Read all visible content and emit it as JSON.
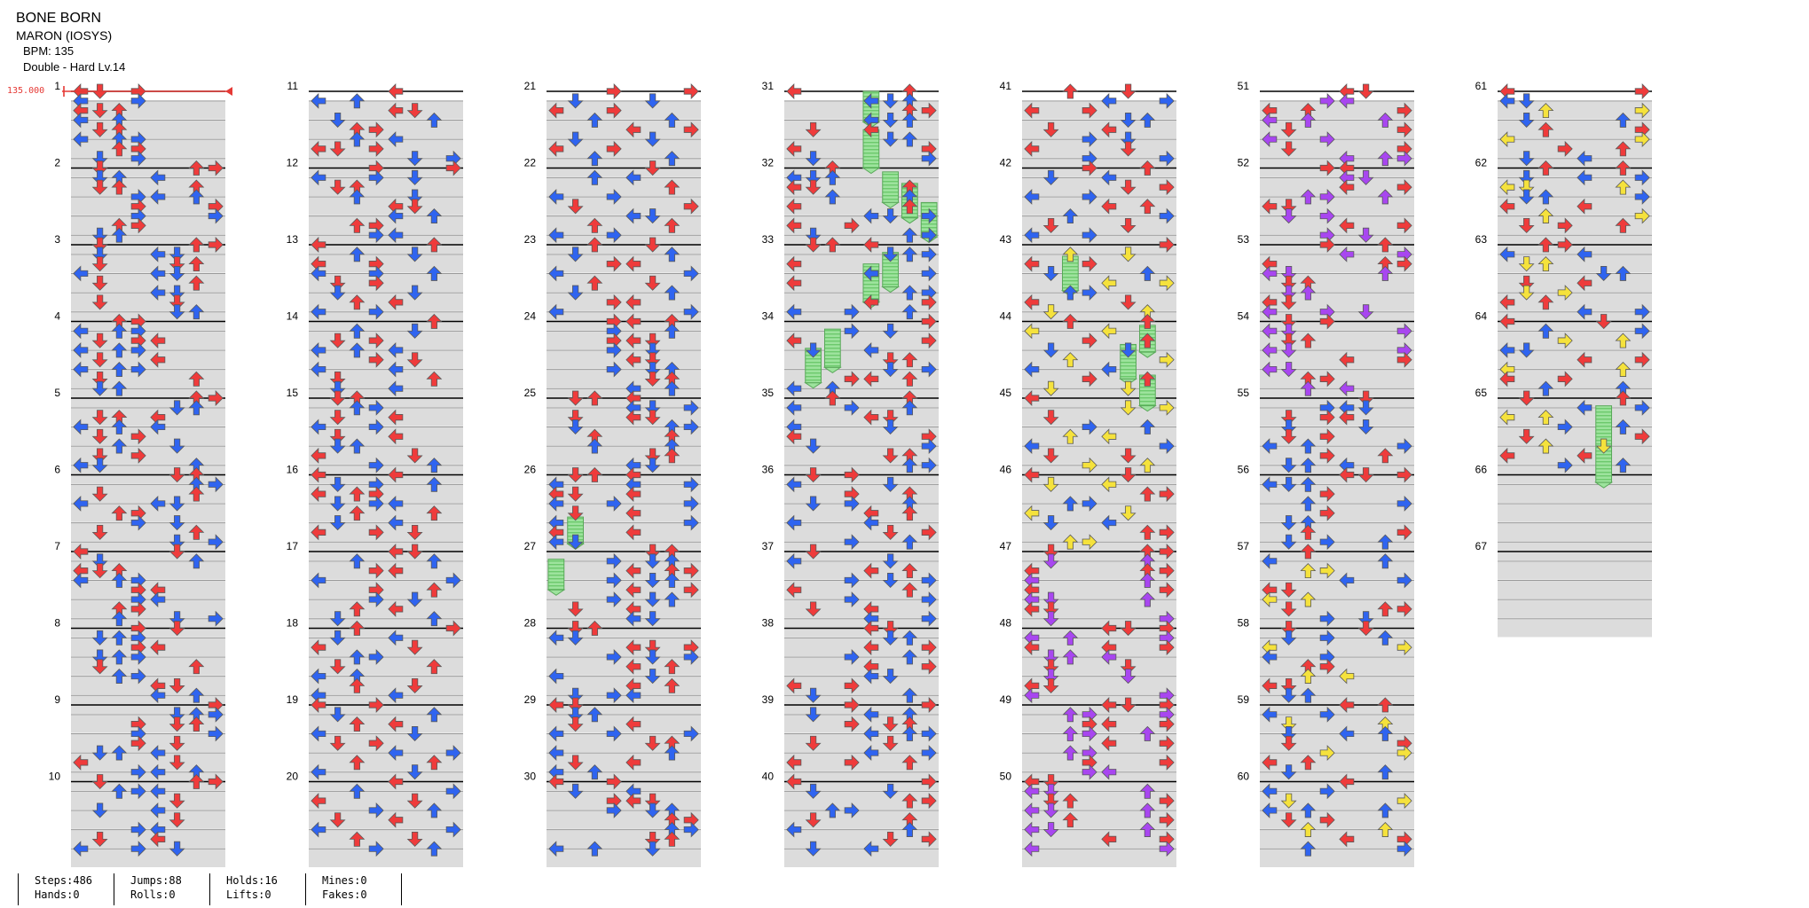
{
  "song": {
    "title": "BONE BORN",
    "artist": "MARON (IOSYS)",
    "bpm_label": "BPM: 135",
    "difficulty_label": "Double - Hard Lv.14",
    "bpm_marker": "135.000"
  },
  "measures": {
    "count": 67,
    "per_column": 10,
    "labels": [
      "1",
      "2",
      "3",
      "4",
      "5",
      "6",
      "7",
      "8",
      "9",
      "10",
      "11",
      "12",
      "13",
      "14",
      "15",
      "16",
      "17",
      "18",
      "19",
      "20",
      "21",
      "22",
      "23",
      "24",
      "25",
      "26",
      "27",
      "28",
      "29",
      "30",
      "31",
      "32",
      "33",
      "34",
      "35",
      "36",
      "37",
      "38",
      "39",
      "40",
      "41",
      "42",
      "43",
      "44",
      "45",
      "46",
      "47",
      "48",
      "49",
      "50",
      "51",
      "52",
      "53",
      "54",
      "55",
      "56",
      "57",
      "58",
      "59",
      "60",
      "61",
      "62",
      "63",
      "64",
      "65",
      "66",
      "67"
    ]
  },
  "note_colors": {
    "quarter": "#ef3b3b",
    "eighth": "#2f64f0",
    "sixteenth": "#f5e23c",
    "twelfth": "#a846f0",
    "hold": "#8fe08f",
    "bpm_line": "#e53935"
  },
  "notes": [
    [
      [
        0,
        0
      ],
      [
        0,
        1
      ],
      [
        0,
        3
      ],
      [
        1,
        0
      ],
      [
        1,
        3
      ],
      [
        2,
        0
      ],
      [
        2,
        1
      ],
      [
        2,
        2
      ],
      [
        3,
        0
      ],
      [
        3,
        2
      ],
      [
        4,
        1
      ],
      [
        4,
        2
      ],
      [
        5,
        0
      ],
      [
        5,
        2
      ],
      [
        5,
        3
      ],
      [
        6,
        2
      ],
      [
        6,
        3
      ],
      [
        7,
        1
      ],
      [
        7,
        3
      ]
    ],
    [
      [
        0,
        1
      ],
      [
        0,
        6
      ],
      [
        0,
        7
      ],
      [
        1,
        1
      ],
      [
        1,
        2
      ],
      [
        1,
        4
      ],
      [
        2,
        1
      ],
      [
        2,
        2
      ],
      [
        2,
        6
      ],
      [
        3,
        3
      ],
      [
        3,
        4
      ],
      [
        3,
        6
      ],
      [
        4,
        3
      ],
      [
        4,
        7
      ],
      [
        5,
        3
      ],
      [
        5,
        7
      ],
      [
        6,
        2
      ],
      [
        6,
        3
      ],
      [
        7,
        1
      ],
      [
        7,
        2
      ]
    ],
    [
      [
        0,
        1
      ],
      [
        0,
        6
      ],
      [
        0,
        7
      ],
      [
        1,
        1
      ],
      [
        1,
        4
      ],
      [
        1,
        5
      ],
      [
        2,
        1
      ],
      [
        2,
        5
      ],
      [
        2,
        6
      ],
      [
        3,
        0
      ],
      [
        3,
        4
      ],
      [
        3,
        5
      ],
      [
        4,
        1
      ],
      [
        4,
        6
      ],
      [
        5,
        4
      ],
      [
        5,
        5
      ],
      [
        6,
        1
      ],
      [
        6,
        5
      ],
      [
        7,
        5
      ],
      [
        7,
        6
      ]
    ],
    [
      [
        0,
        2
      ],
      [
        0,
        3
      ],
      [
        1,
        0
      ],
      [
        1,
        2
      ],
      [
        1,
        3
      ],
      [
        2,
        1
      ],
      [
        2,
        3
      ],
      [
        2,
        4
      ],
      [
        3,
        0
      ],
      [
        3,
        2
      ],
      [
        3,
        3
      ],
      [
        4,
        1
      ],
      [
        4,
        4
      ],
      [
        5,
        0
      ],
      [
        5,
        2
      ],
      [
        5,
        3
      ],
      [
        6,
        1
      ],
      [
        6,
        6
      ],
      [
        7,
        1
      ],
      [
        7,
        2
      ]
    ],
    [
      [
        0,
        6
      ],
      [
        0,
        7
      ],
      [
        1,
        5
      ],
      [
        1,
        6
      ],
      [
        2,
        1
      ],
      [
        2,
        2
      ],
      [
        2,
        4
      ],
      [
        3,
        0
      ],
      [
        3,
        2
      ],
      [
        3,
        4
      ],
      [
        4,
        1
      ],
      [
        4,
        3
      ],
      [
        5,
        2
      ],
      [
        5,
        5
      ],
      [
        6,
        1
      ],
      [
        6,
        3
      ],
      [
        7,
        0
      ],
      [
        7,
        1
      ],
      [
        7,
        6
      ]
    ],
    [
      [
        0,
        5
      ],
      [
        0,
        6
      ],
      [
        1,
        6
      ],
      [
        1,
        7
      ],
      [
        2,
        1
      ],
      [
        2,
        6
      ],
      [
        3,
        0
      ],
      [
        3,
        4
      ],
      [
        3,
        5
      ],
      [
        4,
        2
      ],
      [
        4,
        3
      ],
      [
        5,
        3
      ],
      [
        5,
        5
      ],
      [
        6,
        1
      ],
      [
        6,
        6
      ],
      [
        7,
        5
      ],
      [
        7,
        7
      ]
    ],
    [
      [
        0,
        0
      ],
      [
        0,
        5
      ],
      [
        1,
        1
      ],
      [
        1,
        6
      ],
      [
        2,
        0
      ],
      [
        2,
        1
      ],
      [
        2,
        2
      ],
      [
        3,
        0
      ],
      [
        3,
        2
      ],
      [
        3,
        3
      ],
      [
        4,
        3
      ],
      [
        4,
        4
      ],
      [
        5,
        3
      ],
      [
        5,
        4
      ],
      [
        6,
        2
      ],
      [
        6,
        3
      ],
      [
        7,
        2
      ],
      [
        7,
        5
      ],
      [
        7,
        7
      ]
    ],
    [
      [
        0,
        3
      ],
      [
        0,
        5
      ],
      [
        1,
        1
      ],
      [
        1,
        2
      ],
      [
        1,
        3
      ],
      [
        2,
        3
      ],
      [
        2,
        4
      ],
      [
        3,
        1
      ],
      [
        3,
        2
      ],
      [
        3,
        3
      ],
      [
        4,
        1
      ],
      [
        4,
        6
      ],
      [
        5,
        2
      ],
      [
        5,
        3
      ],
      [
        6,
        4
      ],
      [
        6,
        5
      ],
      [
        7,
        4
      ],
      [
        7,
        6
      ]
    ],
    [
      [
        0,
        7
      ],
      [
        1,
        5
      ],
      [
        1,
        6
      ],
      [
        1,
        7
      ],
      [
        2,
        3
      ],
      [
        2,
        5
      ],
      [
        2,
        6
      ],
      [
        3,
        3
      ],
      [
        3,
        7
      ],
      [
        4,
        3
      ],
      [
        4,
        5
      ],
      [
        5,
        1
      ],
      [
        5,
        2
      ],
      [
        5,
        4
      ],
      [
        6,
        0
      ],
      [
        6,
        5
      ],
      [
        7,
        3
      ],
      [
        7,
        4
      ],
      [
        7,
        6
      ]
    ],
    [
      [
        0,
        1
      ],
      [
        0,
        6
      ],
      [
        0,
        7
      ],
      [
        1,
        2
      ],
      [
        1,
        3
      ],
      [
        1,
        4
      ],
      [
        2,
        5
      ],
      [
        3,
        1
      ],
      [
        3,
        4
      ],
      [
        4,
        5
      ],
      [
        5,
        3
      ],
      [
        5,
        4
      ],
      [
        6,
        1
      ],
      [
        6,
        4
      ],
      [
        7,
        0
      ],
      [
        7,
        3
      ],
      [
        7,
        5
      ]
    ],
    [
      [
        0,
        4
      ],
      [
        1,
        0
      ],
      [
        1,
        2
      ],
      [
        2,
        4
      ],
      [
        2,
        5
      ],
      [
        3,
        1
      ],
      [
        3,
        6
      ],
      [
        4,
        2
      ],
      [
        4,
        3
      ],
      [
        5,
        2
      ],
      [
        5,
        4
      ],
      [
        6,
        0
      ],
      [
        6,
        1
      ],
      [
        6,
        3
      ],
      [
        7,
        5
      ],
      [
        7,
        7
      ]
    ],
    [
      [
        0,
        3
      ],
      [
        0,
        7
      ],
      [
        1,
        0
      ],
      [
        1,
        3
      ],
      [
        1,
        5
      ],
      [
        2,
        1
      ],
      [
        2,
        2
      ],
      [
        3,
        2
      ],
      [
        3,
        5
      ],
      [
        4,
        4
      ],
      [
        4,
        5
      ],
      [
        5,
        4
      ],
      [
        5,
        6
      ],
      [
        6,
        2
      ],
      [
        6,
        3
      ],
      [
        7,
        3
      ],
      [
        7,
        4
      ]
    ],
    [
      [
        0,
        0
      ],
      [
        0,
        6
      ],
      [
        1,
        2
      ],
      [
        1,
        5
      ],
      [
        2,
        0
      ],
      [
        2,
        3
      ],
      [
        3,
        0
      ],
      [
        3,
        3
      ],
      [
        3,
        6
      ],
      [
        4,
        1
      ],
      [
        4,
        3
      ],
      [
        5,
        1
      ],
      [
        5,
        5
      ],
      [
        6,
        2
      ],
      [
        6,
        4
      ],
      [
        7,
        0
      ],
      [
        7,
        3
      ]
    ],
    [
      [
        0,
        6
      ],
      [
        1,
        2
      ],
      [
        1,
        5
      ],
      [
        2,
        1
      ],
      [
        2,
        3
      ],
      [
        3,
        0
      ],
      [
        3,
        2
      ],
      [
        3,
        4
      ],
      [
        4,
        3
      ],
      [
        4,
        5
      ],
      [
        5,
        0
      ],
      [
        5,
        4
      ],
      [
        6,
        1
      ],
      [
        6,
        6
      ],
      [
        7,
        1
      ],
      [
        7,
        4
      ]
    ],
    [
      [
        0,
        1
      ],
      [
        0,
        2
      ],
      [
        1,
        2
      ],
      [
        1,
        3
      ],
      [
        2,
        1
      ],
      [
        2,
        4
      ],
      [
        3,
        0
      ],
      [
        3,
        3
      ],
      [
        4,
        1
      ],
      [
        4,
        4
      ],
      [
        5,
        1
      ],
      [
        5,
        2
      ],
      [
        6,
        0
      ],
      [
        6,
        5
      ],
      [
        7,
        3
      ],
      [
        7,
        6
      ]
    ],
    [
      [
        0,
        0
      ],
      [
        0,
        4
      ],
      [
        1,
        1
      ],
      [
        1,
        3
      ],
      [
        1,
        6
      ],
      [
        2,
        0
      ],
      [
        2,
        2
      ],
      [
        2,
        3
      ],
      [
        3,
        1
      ],
      [
        3,
        3
      ],
      [
        3,
        4
      ],
      [
        4,
        2
      ],
      [
        4,
        6
      ],
      [
        5,
        1
      ],
      [
        5,
        4
      ],
      [
        6,
        0
      ],
      [
        6,
        3
      ],
      [
        6,
        5
      ]
    ],
    [
      [
        0,
        4
      ],
      [
        0,
        5
      ],
      [
        1,
        2
      ],
      [
        1,
        6
      ],
      [
        2,
        3
      ],
      [
        2,
        4
      ],
      [
        3,
        0
      ],
      [
        3,
        7
      ],
      [
        4,
        3
      ],
      [
        4,
        6
      ],
      [
        5,
        3
      ],
      [
        5,
        5
      ],
      [
        6,
        2
      ],
      [
        6,
        4
      ],
      [
        7,
        1
      ],
      [
        7,
        6
      ]
    ],
    [
      [
        0,
        2
      ],
      [
        0,
        7
      ],
      [
        1,
        1
      ],
      [
        1,
        4
      ],
      [
        2,
        0
      ],
      [
        2,
        5
      ],
      [
        3,
        2
      ],
      [
        3,
        3
      ],
      [
        4,
        1
      ],
      [
        4,
        6
      ],
      [
        5,
        0
      ],
      [
        5,
        2
      ],
      [
        6,
        2
      ],
      [
        6,
        5
      ],
      [
        7,
        0
      ],
      [
        7,
        4
      ]
    ],
    [
      [
        0,
        0
      ],
      [
        0,
        3
      ],
      [
        1,
        1
      ],
      [
        1,
        6
      ],
      [
        2,
        2
      ],
      [
        2,
        4
      ],
      [
        3,
        0
      ],
      [
        3,
        5
      ],
      [
        4,
        1
      ],
      [
        4,
        3
      ],
      [
        5,
        4
      ],
      [
        5,
        7
      ],
      [
        6,
        2
      ],
      [
        6,
        6
      ],
      [
        7,
        0
      ],
      [
        7,
        5
      ]
    ],
    [
      [
        0,
        4
      ],
      [
        1,
        2
      ],
      [
        1,
        7
      ],
      [
        2,
        0
      ],
      [
        2,
        5
      ],
      [
        3,
        3
      ],
      [
        3,
        6
      ],
      [
        4,
        1
      ],
      [
        4,
        4
      ],
      [
        5,
        0
      ],
      [
        5,
        7
      ],
      [
        6,
        2
      ],
      [
        6,
        5
      ],
      [
        7,
        3
      ],
      [
        7,
        6
      ]
    ],
    [
      [
        0,
        3
      ],
      [
        0,
        7
      ],
      [
        1,
        1
      ],
      [
        1,
        5
      ],
      [
        2,
        0
      ],
      [
        2,
        3
      ],
      [
        3,
        2
      ],
      [
        3,
        6
      ],
      [
        4,
        4
      ],
      [
        4,
        7
      ],
      [
        5,
        1
      ],
      [
        5,
        5
      ],
      [
        6,
        0
      ],
      [
        6,
        3
      ],
      [
        7,
        2
      ],
      [
        7,
        6
      ]
    ],
    [
      [
        0,
        5
      ],
      [
        1,
        2
      ],
      [
        1,
        4
      ],
      [
        2,
        6
      ],
      [
        3,
        0
      ],
      [
        3,
        3
      ],
      [
        4,
        1
      ],
      [
        4,
        7
      ],
      [
        5,
        4
      ],
      [
        5,
        5
      ],
      [
        6,
        2
      ],
      [
        6,
        6
      ],
      [
        7,
        0
      ],
      [
        7,
        3
      ]
    ],
    [
      [
        0,
        2
      ],
      [
        0,
        5
      ],
      [
        1,
        1
      ],
      [
        1,
        6
      ],
      [
        2,
        3
      ],
      [
        2,
        4
      ],
      [
        3,
        0
      ],
      [
        3,
        7
      ],
      [
        4,
        2
      ],
      [
        4,
        5
      ],
      [
        5,
        1
      ],
      [
        5,
        6
      ],
      [
        6,
        3
      ],
      [
        6,
        4
      ],
      [
        7,
        0
      ],
      [
        7,
        7
      ]
    ]
  ],
  "holds": [
    {
      "measure": 31,
      "lane": 4,
      "start": 0,
      "len": 0.4
    },
    {
      "measure": 31,
      "lane": 4,
      "start": 0.5,
      "len": 0.5
    },
    {
      "measure": 32,
      "lane": 5,
      "start": 0.05,
      "len": 0.4
    },
    {
      "measure": 32,
      "lane": 6,
      "start": 0.2,
      "len": 0.45
    },
    {
      "measure": 32,
      "lane": 7,
      "start": 0.45,
      "len": 0.45
    },
    {
      "measure": 33,
      "lane": 5,
      "start": 0.1,
      "len": 0.45
    },
    {
      "measure": 33,
      "lane": 4,
      "start": 0.25,
      "len": 0.5
    },
    {
      "measure": 34,
      "lane": 2,
      "start": 0.1,
      "len": 0.5
    },
    {
      "measure": 34,
      "lane": 1,
      "start": 0.35,
      "len": 0.45
    },
    {
      "measure": 26,
      "lane": 1,
      "start": 0.55,
      "len": 0.35
    },
    {
      "measure": 27,
      "lane": 0,
      "start": 0.1,
      "len": 0.4
    },
    {
      "measure": 43,
      "lane": 2,
      "start": 0.15,
      "len": 0.45
    },
    {
      "measure": 44,
      "lane": 6,
      "start": 0.05,
      "len": 0.35
    },
    {
      "measure": 44,
      "lane": 5,
      "start": 0.3,
      "len": 0.45
    },
    {
      "measure": 44,
      "lane": 6,
      "start": 0.7,
      "len": 0.4
    },
    {
      "measure": 65,
      "lane": 5,
      "start": 0.1,
      "len": 1.0
    }
  ],
  "stats": [
    {
      "top": "Steps:486",
      "bottom": "Hands:0"
    },
    {
      "top": "Jumps:88",
      "bottom": "Rolls:0"
    },
    {
      "top": "Holds:16",
      "bottom": "Lifts:0"
    },
    {
      "top": "Mines:0",
      "bottom": "Fakes:0"
    }
  ]
}
